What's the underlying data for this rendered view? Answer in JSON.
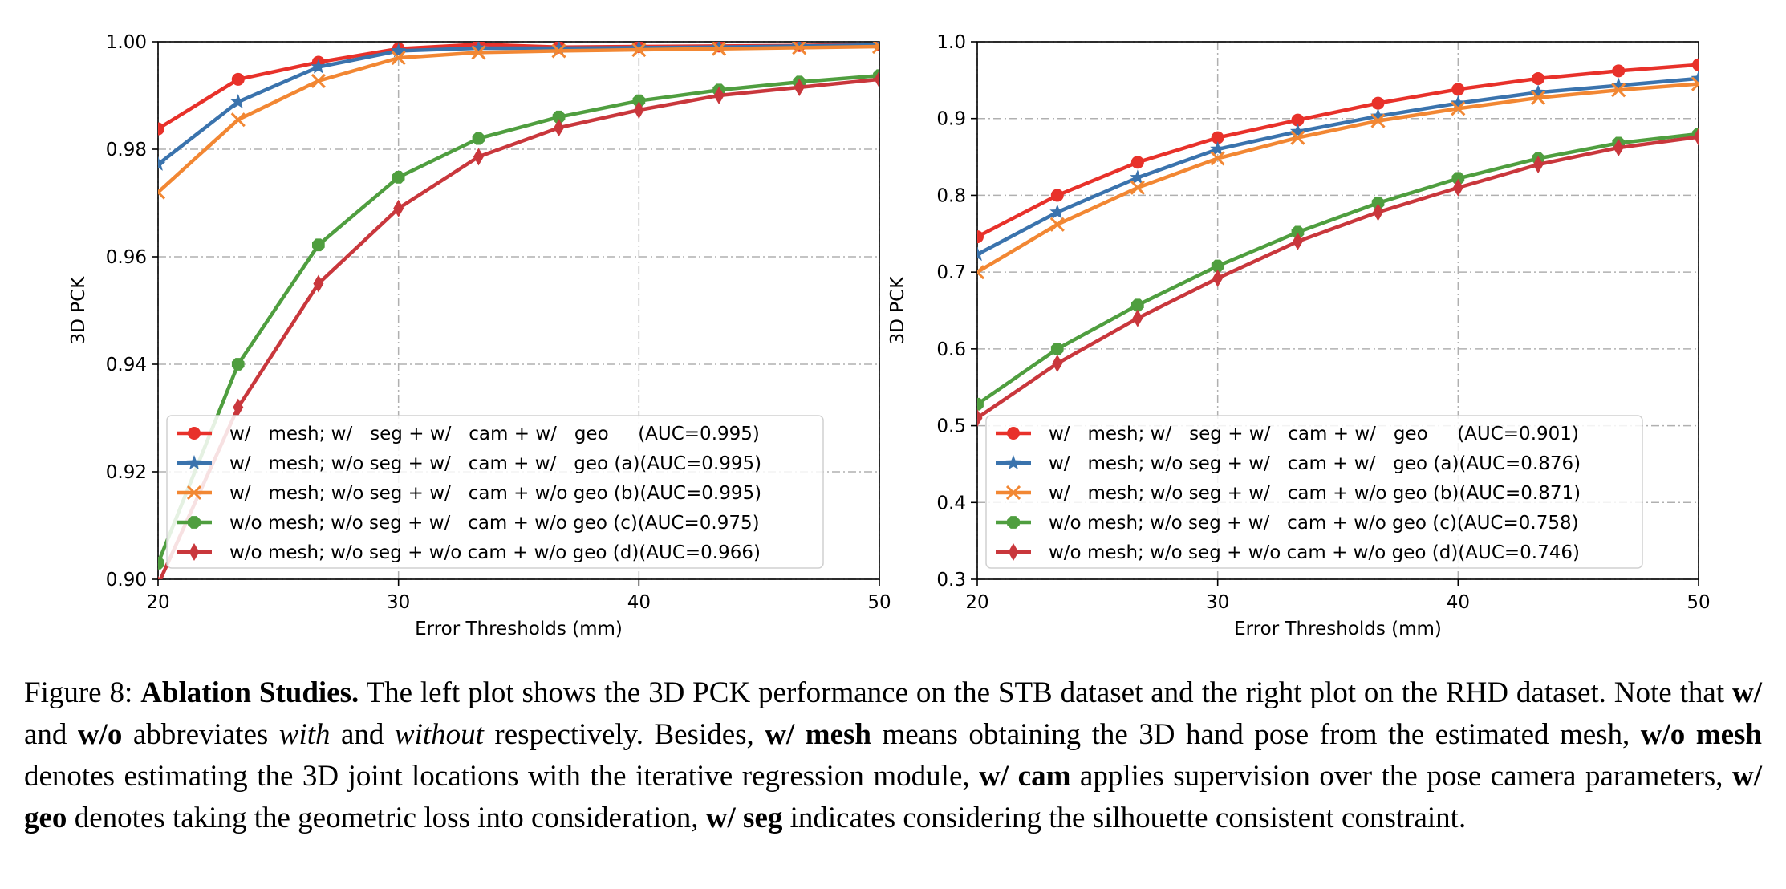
{
  "chart_data": [
    {
      "type": "line",
      "title": "",
      "xlabel": "Error Thresholds (mm)",
      "ylabel": "3D PCK",
      "xlim": [
        20,
        50
      ],
      "ylim": [
        0.9,
        1.0
      ],
      "xticks": [
        "20",
        "30",
        "40",
        "50"
      ],
      "yticks": [
        "0.90",
        "0.92",
        "0.94",
        "0.96",
        "0.98",
        "1.00"
      ],
      "grid": true,
      "legend_position": "lower-right",
      "x": [
        20,
        23.33,
        26.67,
        30,
        33.33,
        36.67,
        40,
        43.33,
        46.67,
        50
      ],
      "series": [
        {
          "name": "w/   mesh; w/   seg + w/   cam + w/   geo     (AUC=0.995)",
          "color": "#e8312a",
          "marker": "circle",
          "values": [
            0.9838,
            0.993,
            0.9962,
            0.9987,
            0.9995,
            0.999,
            0.9991,
            0.9992,
            0.9993,
            0.9995
          ]
        },
        {
          "name": "w/   mesh; w/o seg + w/   cam + w/   geo (a)(AUC=0.995)",
          "color": "#3a73ad",
          "marker": "star",
          "values": [
            0.9772,
            0.9888,
            0.9953,
            0.9983,
            0.9988,
            0.9988,
            0.9989,
            0.999,
            0.9992,
            0.9994
          ]
        },
        {
          "name": "w/   mesh; w/o seg + w/   cam + w/o geo (b)(AUC=0.995)",
          "color": "#f28733",
          "marker": "x",
          "values": [
            0.972,
            0.9855,
            0.9927,
            0.997,
            0.998,
            0.9983,
            0.9985,
            0.9987,
            0.9989,
            0.9991
          ]
        },
        {
          "name": "w/o mesh; w/o seg + w/   cam + w/o geo (c)(AUC=0.975)",
          "color": "#4f9e3f",
          "marker": "octagon",
          "values": [
            0.903,
            0.94,
            0.9622,
            0.9748,
            0.982,
            0.986,
            0.989,
            0.991,
            0.9925,
            0.9937
          ]
        },
        {
          "name": "w/o mesh; w/o seg + w/o cam + w/o geo (d)(AUC=0.966)",
          "color": "#c9373c",
          "marker": "diamond",
          "values": [
            0.899,
            0.932,
            0.955,
            0.969,
            0.9786,
            0.984,
            0.9873,
            0.99,
            0.9915,
            0.993
          ]
        }
      ]
    },
    {
      "type": "line",
      "title": "",
      "xlabel": "Error Thresholds (mm)",
      "ylabel": "3D PCK",
      "xlim": [
        20,
        50
      ],
      "ylim": [
        0.3,
        1.0
      ],
      "xticks": [
        "20",
        "30",
        "40",
        "50"
      ],
      "yticks": [
        "0.3",
        "0.4",
        "0.5",
        "0.6",
        "0.7",
        "0.8",
        "0.9",
        "1.0"
      ],
      "grid": true,
      "legend_position": "lower-right",
      "x": [
        20,
        23.33,
        26.67,
        30,
        33.33,
        36.67,
        40,
        43.33,
        46.67,
        50
      ],
      "series": [
        {
          "name": "w/   mesh; w/   seg + w/   cam + w/   geo     (AUC=0.901)",
          "color": "#e8312a",
          "marker": "circle",
          "values": [
            0.746,
            0.8,
            0.843,
            0.875,
            0.898,
            0.92,
            0.938,
            0.952,
            0.962,
            0.97
          ]
        },
        {
          "name": "w/   mesh; w/o seg + w/   cam + w/   geo (a)(AUC=0.876)",
          "color": "#3a73ad",
          "marker": "star",
          "values": [
            0.723,
            0.778,
            0.823,
            0.86,
            0.883,
            0.903,
            0.92,
            0.934,
            0.943,
            0.952
          ]
        },
        {
          "name": "w/   mesh; w/o seg + w/   cam + w/o geo (b)(AUC=0.871)",
          "color": "#f28733",
          "marker": "x",
          "values": [
            0.7,
            0.762,
            0.81,
            0.848,
            0.875,
            0.897,
            0.913,
            0.927,
            0.937,
            0.945
          ]
        },
        {
          "name": "w/o mesh; w/o seg + w/   cam + w/o geo (c)(AUC=0.758)",
          "color": "#4f9e3f",
          "marker": "octagon",
          "values": [
            0.528,
            0.6,
            0.657,
            0.708,
            0.752,
            0.79,
            0.822,
            0.848,
            0.868,
            0.88
          ]
        },
        {
          "name": "w/o mesh; w/o seg + w/o cam + w/o geo (d)(AUC=0.746)",
          "color": "#c9373c",
          "marker": "diamond",
          "values": [
            0.51,
            0.581,
            0.64,
            0.692,
            0.74,
            0.778,
            0.81,
            0.84,
            0.862,
            0.876
          ]
        }
      ]
    }
  ],
  "caption": {
    "label": "Figure 8: ",
    "title": "Ablation Studies.",
    "t1": " The left plot shows the 3D PCK performance on the STB dataset and the right plot on the RHD dataset.  Note that ",
    "b1": "w/",
    "t2": " and ",
    "b2": "w/o",
    "t3": " abbreviates ",
    "i1": "with",
    "t4": " and ",
    "i2": "without",
    "t5": " respectively.  Besides, ",
    "b3": "w/ mesh",
    "t6": " means obtaining the 3D hand pose from the estimated mesh, ",
    "b4": "w/o mesh",
    "t7": " denotes estimating the 3D joint locations with the iterative regression module, ",
    "b5": "w/ cam",
    "t8": " applies supervision over the pose camera parameters, ",
    "b6": "w/ geo",
    "t9": " denotes taking the geometric loss into consideration, ",
    "b7": "w/ seg",
    "t10": " indicates considering the silhouette consistent constraint."
  }
}
